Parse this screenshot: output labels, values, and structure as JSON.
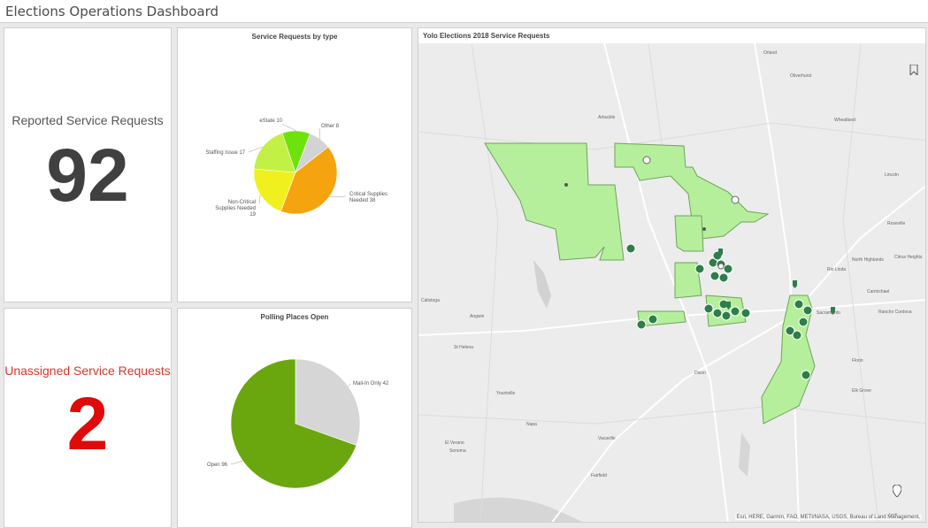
{
  "header": {
    "title": "Elections Operations Dashboard"
  },
  "indicators": {
    "reported": {
      "title": "Reported Service Requests",
      "value": "92",
      "color": "#404040"
    },
    "unassigned": {
      "title": "Unassigned Service Requests",
      "value": "2",
      "title_color": "#d9362c",
      "value_color": "#e00a0a"
    }
  },
  "chart_data": [
    {
      "type": "pie",
      "title": "Service Requests by type",
      "categories": [
        "Critical Supplies Needed",
        "Non-Critical Supplies Needed",
        "Staffing Issue",
        "eState",
        "Other"
      ],
      "values": [
        38,
        19,
        17,
        10,
        8
      ],
      "colors": [
        "#f5a30f",
        "#f0f01e",
        "#c2f044",
        "#6de20c",
        "#d3d3d3"
      ],
      "labels": [
        "Critical Supplies Needed 38",
        "Non-Critical Supplies Needed 19",
        "Staffing Issue 17",
        "eState 10",
        "Other 8"
      ]
    },
    {
      "type": "pie",
      "title": "Polling Places Open",
      "categories": [
        "Open",
        "Mail-In Only"
      ],
      "values": [
        96,
        42
      ],
      "colors": [
        "#6aa70f",
        "#d6d6d6"
      ],
      "labels": [
        "Open 96",
        "Mail-In Only 42"
      ]
    }
  ],
  "map": {
    "title": "Yolo Elections 2018 Service Requests",
    "attribution": "Esri, HERE, Garmin, FAO, METI/NASA, USGS, Bureau of Land Management,",
    "places": [
      "Orland",
      "Oliverhurst",
      "Wheatland",
      "Arbuckle",
      "Lincoln",
      "Roseville",
      "North Highlands",
      "Citrus Heights",
      "Rio Linda",
      "Carmichael",
      "Rancho Cordova",
      "Sacramento",
      "Florin",
      "Elk Grove",
      "Angwin",
      "St Helena",
      "Yountville",
      "Dixon",
      "Vacaville",
      "Fairfield",
      "Napa",
      "El Verano",
      "Sonoma",
      "Calistoga",
      "Lodi"
    ],
    "layer_colors": {
      "precinct_fill": "#b5ef9c",
      "precinct_stroke": "#6fa35a",
      "marker": "#2f7d4a"
    }
  }
}
